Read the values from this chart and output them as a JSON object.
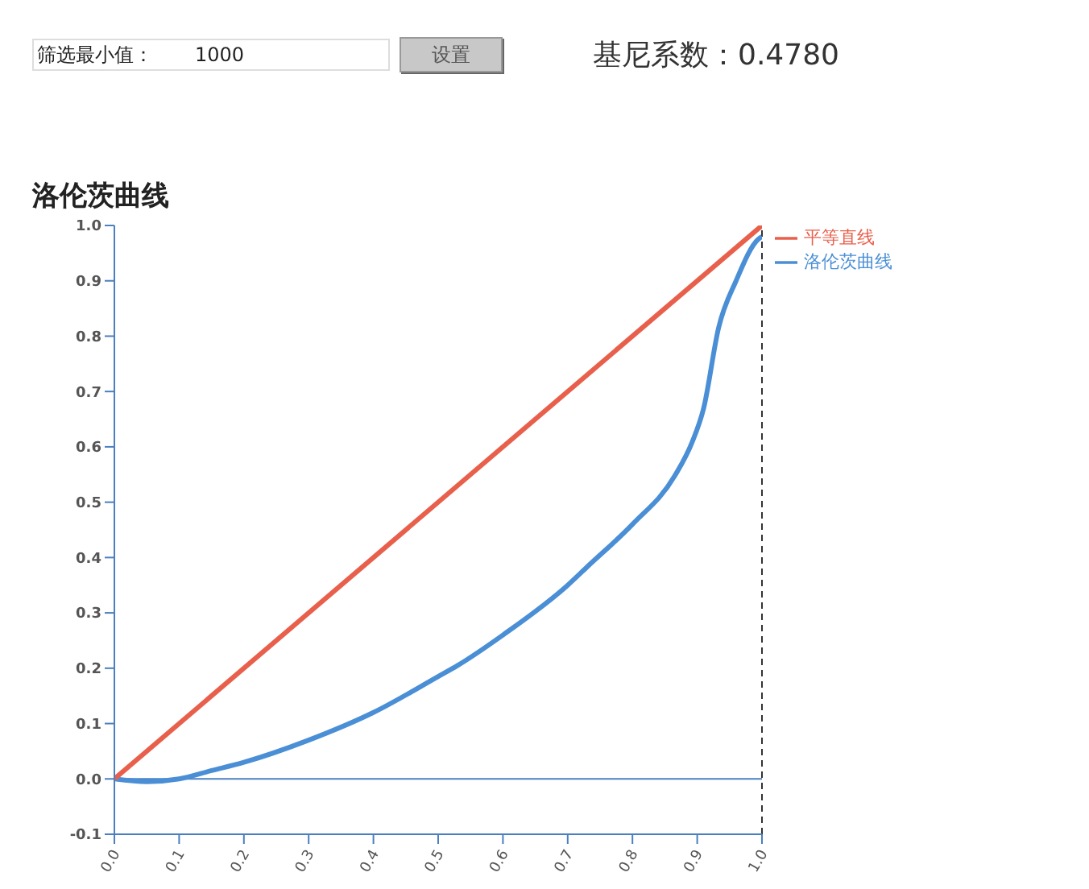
{
  "chart_data": {
    "type": "line",
    "title": "洛伦茨曲线",
    "annotations": [
      "筛选最小值：",
      "1000",
      "设置",
      "基尼系数：0.4780"
    ],
    "series": [
      {
        "name": "洛伦茨曲线",
        "color": "#4a8fd6",
        "x": [
          0,
          0.05,
          0.1,
          0.15,
          0.2,
          0.3,
          0.4,
          0.5,
          0.53,
          0.6,
          0.7,
          0.73,
          0.8,
          0.865,
          0.892,
          0.91,
          0.933,
          0.96,
          0.994,
          1.0
        ],
        "values": [
          0,
          -0.005,
          0,
          0.015,
          0.03,
          0.07,
          0.12,
          0.185,
          0.205,
          0.26,
          0.35,
          0.383,
          0.46,
          0.547,
          0.608,
          0.67,
          0.815,
          0.9,
          0.975,
          0.98
        ]
      },
      {
        "name": "平等直线",
        "color": "#e8604c",
        "x": [
          0,
          1
        ],
        "values": [
          0,
          1
        ]
      }
    ],
    "xlim": [
      0,
      1
    ],
    "xticks": [
      {
        "value": 0,
        "label": "0.0"
      },
      {
        "value": 0.1,
        "label": "0.1"
      },
      {
        "value": 0.2,
        "label": "0.2"
      },
      {
        "value": 0.3,
        "label": "0.3"
      },
      {
        "value": 0.4,
        "label": "0.4"
      },
      {
        "value": 0.5,
        "label": "0.5"
      },
      {
        "value": 0.6,
        "label": "0.6"
      },
      {
        "value": 0.7,
        "label": "0.7"
      },
      {
        "value": 0.8,
        "label": "0.8"
      },
      {
        "value": 0.9,
        "label": "0.9"
      },
      {
        "value": 1,
        "label": "1.0"
      }
    ],
    "ylim": [
      -0.1,
      1
    ],
    "yticks": [
      {
        "value": -0.1,
        "label": "-0.1"
      },
      {
        "value": 0,
        "label": "0.0"
      },
      {
        "value": 0.1,
        "label": "0.1"
      },
      {
        "value": 0.2,
        "label": "0.2"
      },
      {
        "value": 0.3,
        "label": "0.3"
      },
      {
        "value": 0.4,
        "label": "0.4"
      },
      {
        "value": 0.5,
        "label": "0.5"
      },
      {
        "value": 0.6,
        "label": "0.6"
      },
      {
        "value": 0.7,
        "label": "0.7"
      },
      {
        "value": 0.8,
        "label": "0.8"
      },
      {
        "value": 0.9,
        "label": "0.9"
      },
      {
        "value": 1,
        "label": "1.0"
      }
    ],
    "ref_lines": [
      {
        "axis": "x",
        "value": 1,
        "color": "#333333",
        "line_style": "dashed"
      },
      {
        "axis": "y",
        "value": 0,
        "color": "#4a7fc0"
      }
    ],
    "grid": false,
    "legend": "top right",
    "marker": "none",
    "line_style": "solid"
  }
}
